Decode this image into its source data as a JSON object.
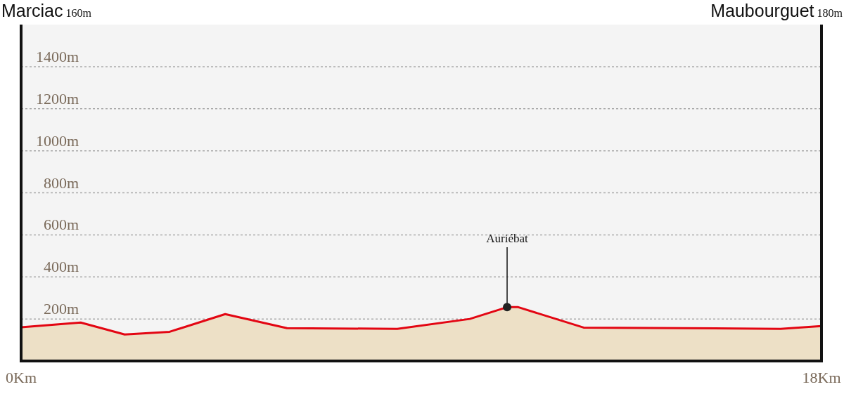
{
  "chart_data": {
    "type": "area",
    "x": [
      0,
      1.34,
      2.33,
      3.34,
      4.59,
      5.98,
      8.46,
      10.09,
      10.93,
      11.18,
      12.65,
      17.08,
      18
    ],
    "series": [
      {
        "color": "#e30613",
        "values": [
          160,
          183,
          126,
          139,
          223,
          156,
          153,
          200,
          256,
          256,
          159,
          153,
          166
        ]
      }
    ],
    "xlim": [
      0,
      18
    ],
    "xticks": [
      {
        "value": 0,
        "label": "0Km"
      },
      {
        "value": 18,
        "label": "18Km"
      }
    ],
    "ylim": [
      0,
      1600
    ],
    "yticks": [
      {
        "value": 200,
        "label": "200m"
      },
      {
        "value": 400,
        "label": "400m"
      },
      {
        "value": 600,
        "label": "600m"
      },
      {
        "value": 800,
        "label": "800m"
      },
      {
        "value": 1000,
        "label": "1000m"
      },
      {
        "value": 1200,
        "label": "1200m"
      },
      {
        "value": 1400,
        "label": "1400m"
      }
    ],
    "grid": "y",
    "marker": "none",
    "annotations": [
      "Marciac 160m",
      "Maubourguet 180m",
      {
        "text": "Auriébat",
        "x": 10.93,
        "y": 256
      }
    ]
  }
}
